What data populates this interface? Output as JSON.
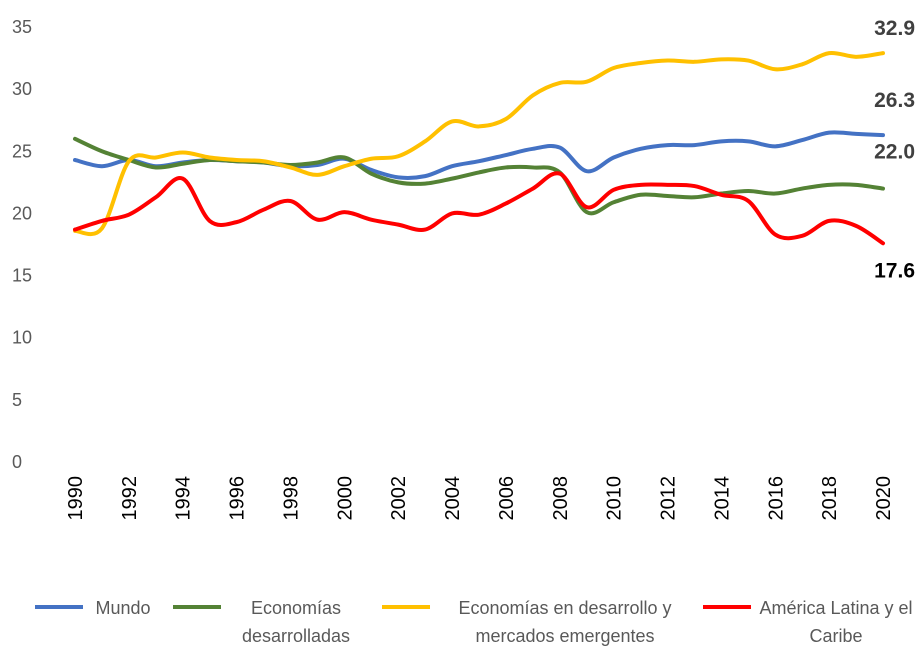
{
  "chart_data": {
    "type": "line",
    "x": [
      1990,
      1991,
      1992,
      1993,
      1994,
      1995,
      1996,
      1997,
      1998,
      1999,
      2000,
      2001,
      2002,
      2003,
      2004,
      2005,
      2006,
      2007,
      2008,
      2009,
      2010,
      2011,
      2012,
      2013,
      2014,
      2015,
      2016,
      2017,
      2018,
      2019,
      2020
    ],
    "xlim": [
      1990,
      2020
    ],
    "xticks": [
      1990,
      1992,
      1994,
      1996,
      1998,
      2000,
      2002,
      2004,
      2006,
      2008,
      2010,
      2012,
      2014,
      2016,
      2018,
      2020
    ],
    "ylim": [
      0,
      35
    ],
    "yticks": [
      0,
      5,
      10,
      15,
      20,
      25,
      30,
      35
    ],
    "grid": false,
    "series": [
      {
        "name": "Mundo",
        "color": "#4472c4",
        "values": [
          24.3,
          23.8,
          24.3,
          23.8,
          24.1,
          24.3,
          24.2,
          24.1,
          23.8,
          23.9,
          24.4,
          23.5,
          22.9,
          23.0,
          23.8,
          24.2,
          24.7,
          25.2,
          25.3,
          23.4,
          24.5,
          25.2,
          25.5,
          25.5,
          25.8,
          25.8,
          25.4,
          25.9,
          26.5,
          26.4,
          26.3
        ],
        "value_labels": [
          null,
          null,
          null,
          null,
          null,
          null,
          null,
          null,
          null,
          null,
          null,
          null,
          null,
          null,
          null,
          null,
          null,
          null,
          null,
          null,
          null,
          null,
          null,
          null,
          null,
          null,
          null,
          null,
          null,
          null,
          "26.3"
        ]
      },
      {
        "name": "Economías desarrolladas",
        "color": "#548235",
        "values": [
          26.0,
          25.0,
          24.3,
          23.7,
          24.0,
          24.3,
          24.2,
          24.1,
          23.9,
          24.1,
          24.5,
          23.2,
          22.5,
          22.4,
          22.8,
          23.3,
          23.7,
          23.7,
          23.3,
          20.1,
          20.9,
          21.5,
          21.4,
          21.3,
          21.6,
          21.8,
          21.6,
          22.0,
          22.3,
          22.3,
          22.0
        ],
        "value_labels": [
          null,
          null,
          null,
          null,
          null,
          null,
          null,
          null,
          null,
          null,
          null,
          null,
          null,
          null,
          null,
          null,
          null,
          null,
          null,
          null,
          null,
          null,
          null,
          null,
          null,
          null,
          null,
          null,
          null,
          null,
          "22.0"
        ]
      },
      {
        "name": "Economías en desarrollo y mercados emergentes",
        "color": "#ffc000",
        "values": [
          18.6,
          18.8,
          24.2,
          24.5,
          24.9,
          24.5,
          24.3,
          24.2,
          23.7,
          23.1,
          23.8,
          24.4,
          24.6,
          25.8,
          27.4,
          27.0,
          27.6,
          29.5,
          30.5,
          30.6,
          31.7,
          32.1,
          32.3,
          32.2,
          32.4,
          32.3,
          31.6,
          32.0,
          32.9,
          32.6,
          32.9
        ],
        "value_labels": [
          null,
          null,
          null,
          null,
          null,
          null,
          null,
          null,
          null,
          null,
          null,
          null,
          null,
          null,
          null,
          null,
          null,
          null,
          null,
          null,
          null,
          null,
          null,
          null,
          null,
          null,
          null,
          null,
          null,
          null,
          "32.9"
        ]
      },
      {
        "name": "América Latina y el Caribe",
        "color": "#ff0000",
        "values": [
          18.7,
          19.4,
          19.9,
          21.3,
          22.8,
          19.4,
          19.3,
          20.3,
          21.0,
          19.5,
          20.1,
          19.5,
          19.1,
          18.7,
          20.0,
          19.9,
          20.8,
          22.0,
          23.2,
          20.5,
          21.9,
          22.3,
          22.3,
          22.2,
          21.5,
          21.0,
          18.3,
          18.2,
          19.4,
          19.0,
          17.6
        ],
        "value_labels": [
          null,
          null,
          null,
          null,
          null,
          null,
          null,
          null,
          null,
          null,
          null,
          null,
          null,
          null,
          null,
          null,
          null,
          null,
          null,
          null,
          null,
          null,
          null,
          null,
          null,
          null,
          null,
          null,
          null,
          null,
          "17.6"
        ]
      }
    ]
  }
}
